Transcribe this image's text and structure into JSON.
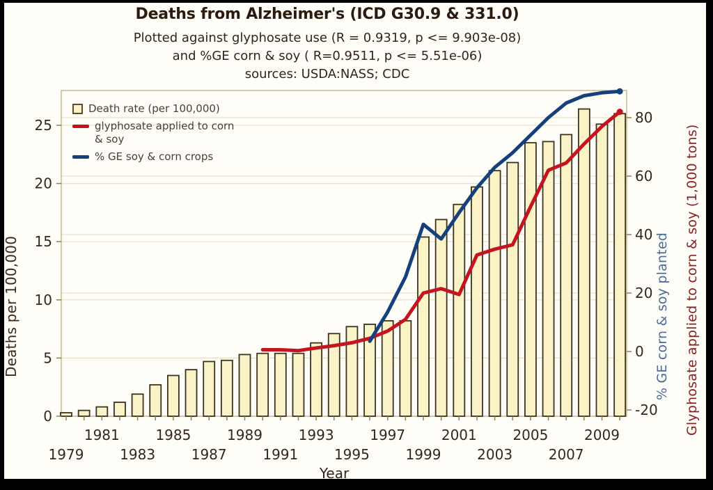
{
  "header": {
    "title": "Deaths from Alzheimer's (ICD G30.9 & 331.0)",
    "subtitle_line1": "Plotted against glyphosate use (R = 0.9319, p <= 9.903e-08)",
    "subtitle_line2": "and %GE corn & soy ( R=0.9511, p <= 5.51e-06)",
    "subtitle_line3": "sources: USDA:NASS; CDC"
  },
  "legend": {
    "items": [
      {
        "label": "Death rate (per 100,000)",
        "marker": "bar-swatch"
      },
      {
        "label": "glyphosate applied to corn\n& soy",
        "marker": "red-line"
      },
      {
        "label": "% GE soy & corn crops",
        "marker": "blue-line"
      }
    ]
  },
  "axes": {
    "x_label": "Year",
    "left_label": "Deaths per 100,000",
    "right_label_blue": "% GE corn & soy planted",
    "right_label_red": "Glyphosate applied to corn & soy (1,000 tons)"
  },
  "colors": {
    "bar_fill": "#faf3c8",
    "bar_stroke": "#3b3220",
    "red": "#c41420",
    "blue": "#16407c",
    "grid": "#e8dfc2",
    "plot_border": "#c4b488",
    "tick": "#8f7f57",
    "tick_text": "#35281a"
  },
  "chart_data": {
    "type": "bar",
    "title": "Deaths from Alzheimer's (ICD G30.9 & 331.0)",
    "xlabel": "Year",
    "ylabel_left": "Deaths per 100,000",
    "ylabel_right": "% GE corn & soy planted / Glyphosate applied to corn & soy (1,000 tons)",
    "grid": true,
    "legend_position": "top-left",
    "years": [
      1979,
      1980,
      1981,
      1982,
      1983,
      1984,
      1985,
      1986,
      1987,
      1988,
      1989,
      1990,
      1991,
      1992,
      1993,
      1994,
      1995,
      1996,
      1997,
      1998,
      1999,
      2000,
      2001,
      2002,
      2003,
      2004,
      2005,
      2006,
      2007,
      2008,
      2009,
      2010
    ],
    "bar_series": {
      "name": "Death rate (per 100,000)",
      "axis": "left",
      "values": [
        0.3,
        0.5,
        0.8,
        1.2,
        1.9,
        2.7,
        3.5,
        4.0,
        4.7,
        4.8,
        5.3,
        5.4,
        5.4,
        5.4,
        6.3,
        7.1,
        7.7,
        7.9,
        8.2,
        8.2,
        15.4,
        16.9,
        18.2,
        19.7,
        21.1,
        21.8,
        23.5,
        23.6,
        24.2,
        26.4,
        25.1,
        26.0
      ]
    },
    "line_series": [
      {
        "name": "glyphosate applied to corn & soy",
        "axis": "right",
        "color_key": "red",
        "start_year": 1990,
        "values": [
          0.6,
          0.6,
          0.3,
          1.2,
          2.0,
          3.0,
          4.5,
          7.0,
          11.0,
          20.0,
          21.5,
          19.5,
          33.0,
          35.0,
          36.5,
          49.5,
          62.0,
          64.5,
          71.0,
          77.0,
          82.0
        ]
      },
      {
        "name": "% GE soy & corn crops",
        "axis": "right",
        "color_key": "blue",
        "start_year": 1996,
        "values": [
          3.5,
          13.5,
          25.5,
          43.5,
          38.5,
          47.5,
          56.0,
          63.0,
          68.0,
          74.0,
          80.0,
          85.0,
          87.5,
          88.5,
          89.0
        ]
      }
    ],
    "axis_left": {
      "ticks": [
        0,
        5,
        10,
        15,
        20,
        25
      ],
      "range": [
        0,
        28
      ]
    },
    "axis_right": {
      "ticks": [
        -20,
        0,
        20,
        40,
        60,
        80
      ],
      "range": [
        -22,
        90
      ]
    },
    "x_ticks_upper": [
      1981,
      1985,
      1989,
      1993,
      1997,
      2001,
      2005,
      2009
    ],
    "x_ticks_lower": [
      1979,
      1983,
      1987,
      1991,
      1995,
      1999,
      2003,
      2007
    ]
  }
}
